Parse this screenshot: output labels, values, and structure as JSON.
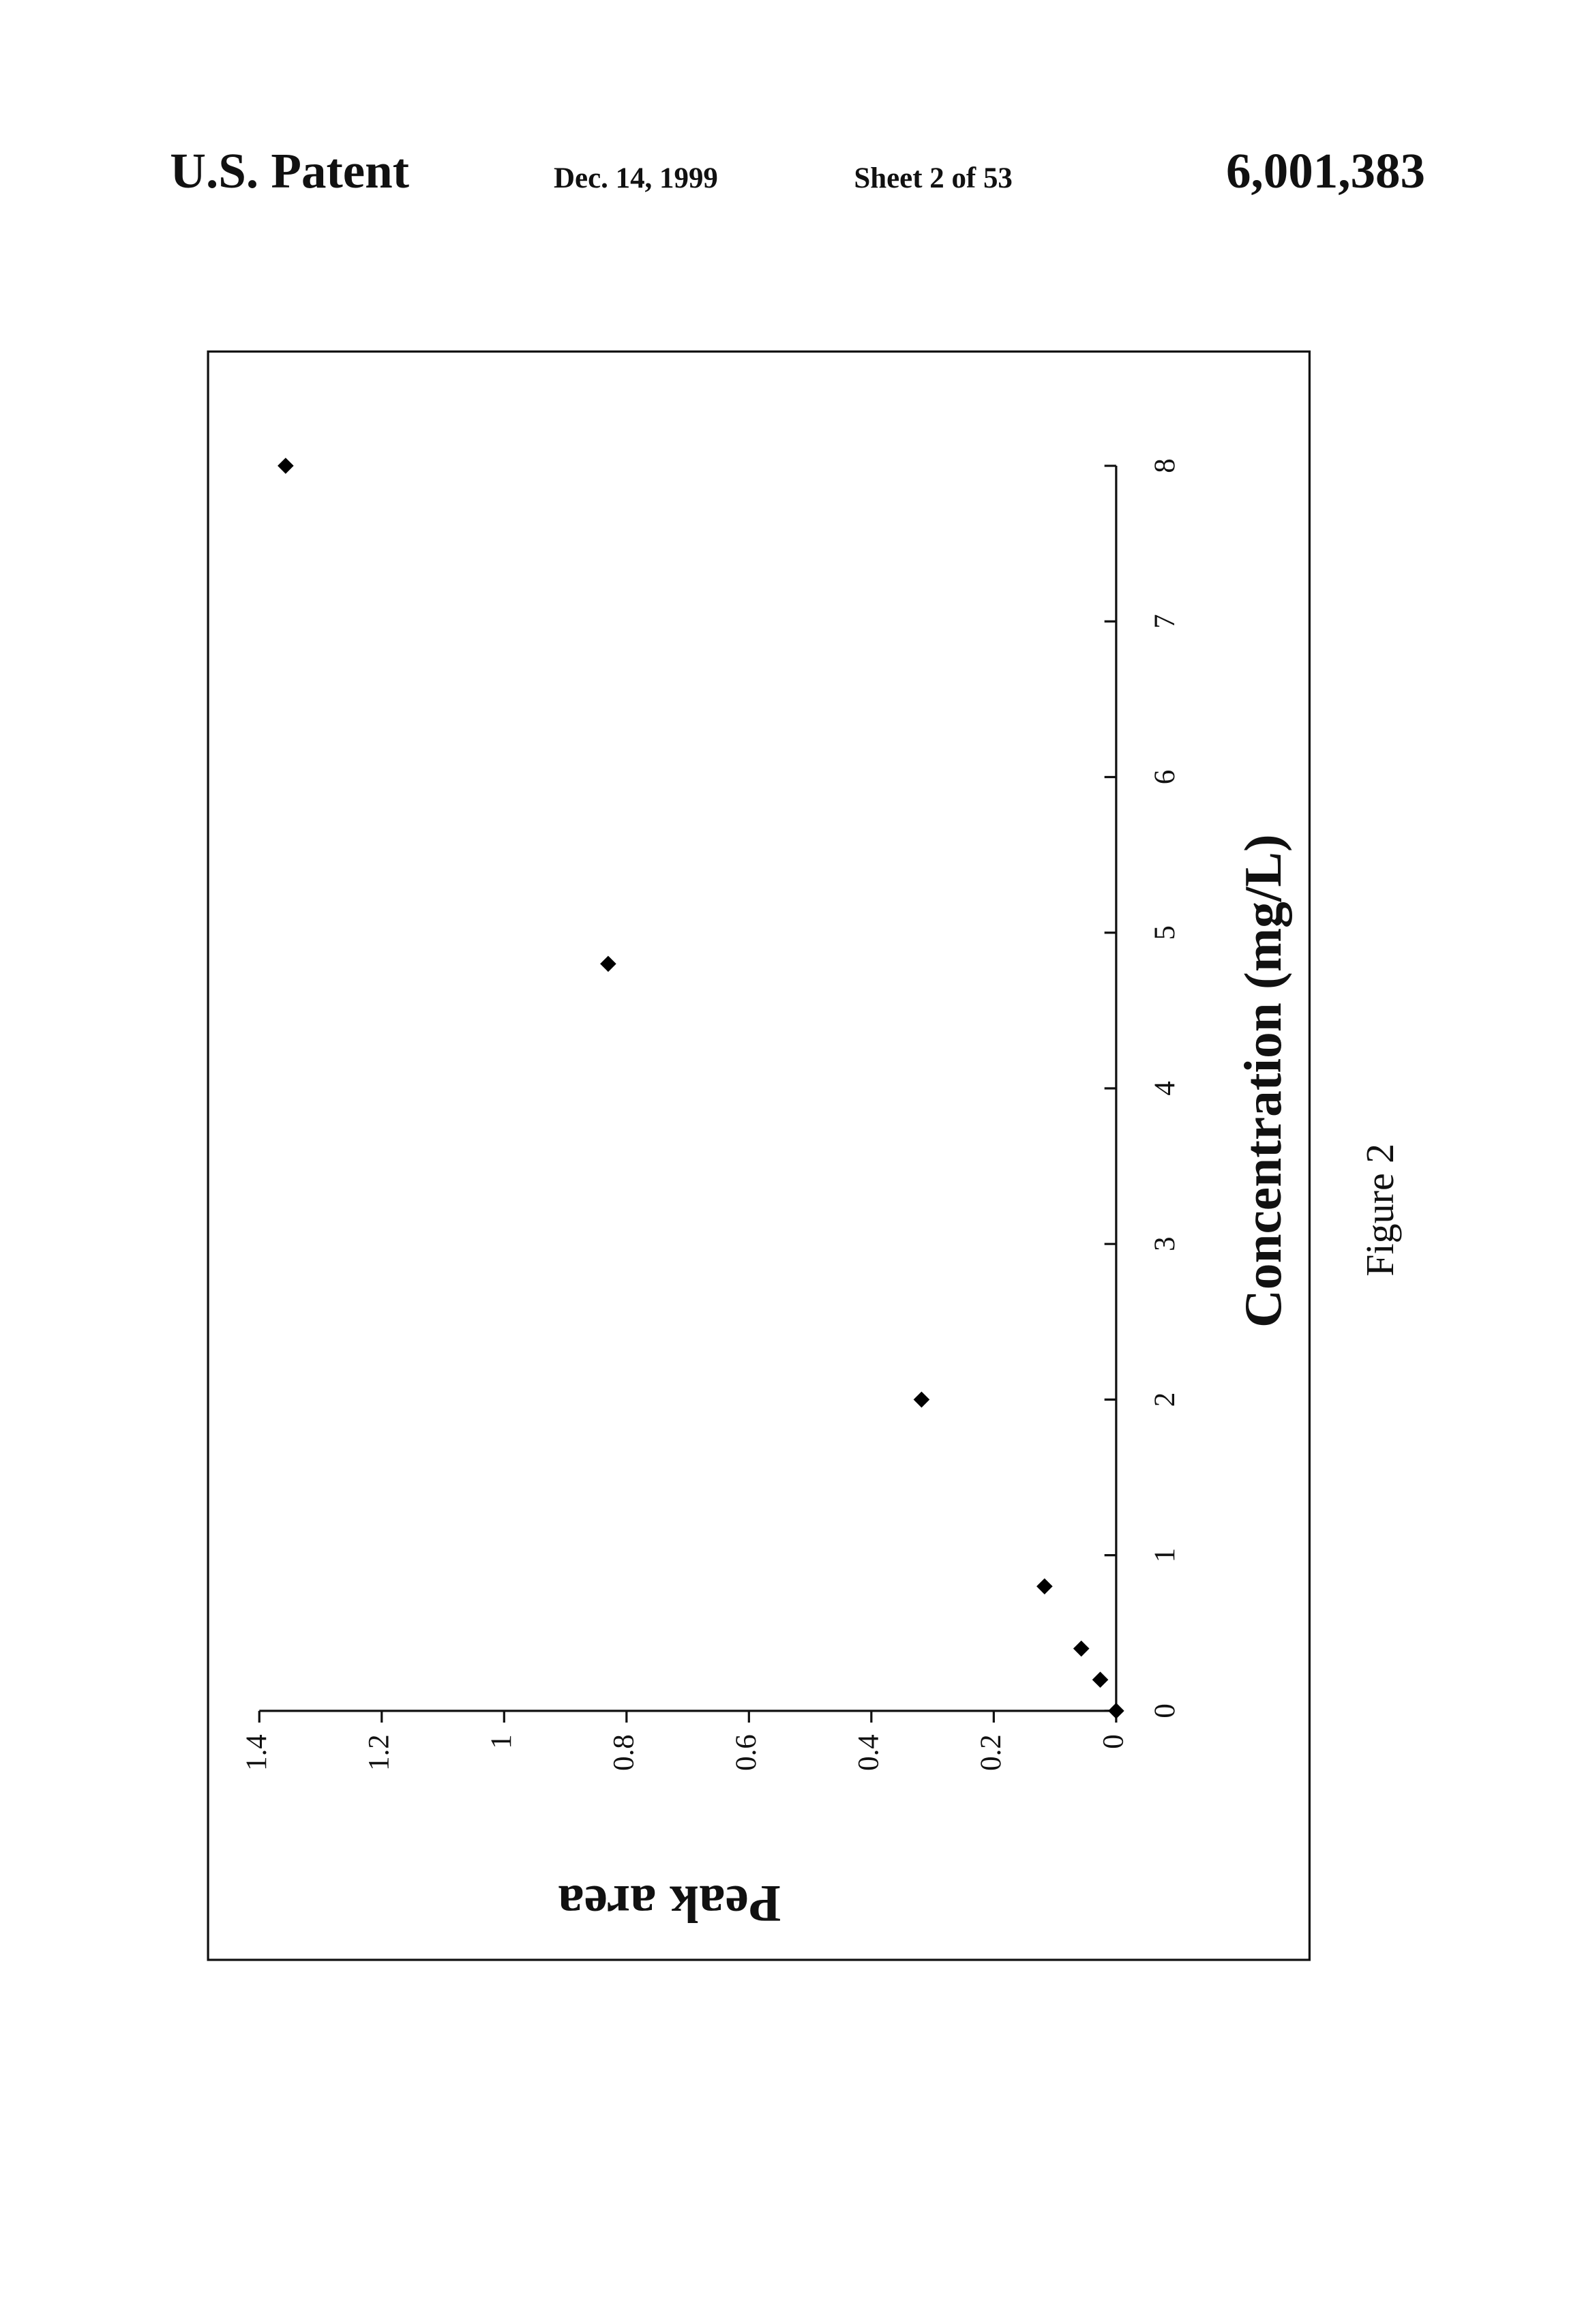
{
  "header": {
    "left": "U.S. Patent",
    "date": "Dec. 14, 1999",
    "sheet": "Sheet 2 of 53",
    "number": "6,001,383"
  },
  "figure_label": "Figure 2",
  "chart_data": {
    "type": "scatter",
    "x_label": "Concentration (mg/L)",
    "y_label": "Peak area",
    "x": [
      0,
      0.2,
      0.4,
      0.8,
      2,
      4.8,
      8
    ],
    "values": [
      0,
      0.026,
      0.057,
      0.117,
      0.318,
      0.83,
      1.357
    ],
    "color": "#000000",
    "xlim": [
      0,
      8
    ],
    "xticks": [
      0,
      1,
      2,
      3,
      4,
      5,
      6,
      7,
      8
    ],
    "ylim": [
      0,
      1.4
    ],
    "yticks": [
      0,
      0.2,
      0.4,
      0.6,
      0.8,
      1,
      1.2,
      1.4
    ],
    "grid": false
  }
}
